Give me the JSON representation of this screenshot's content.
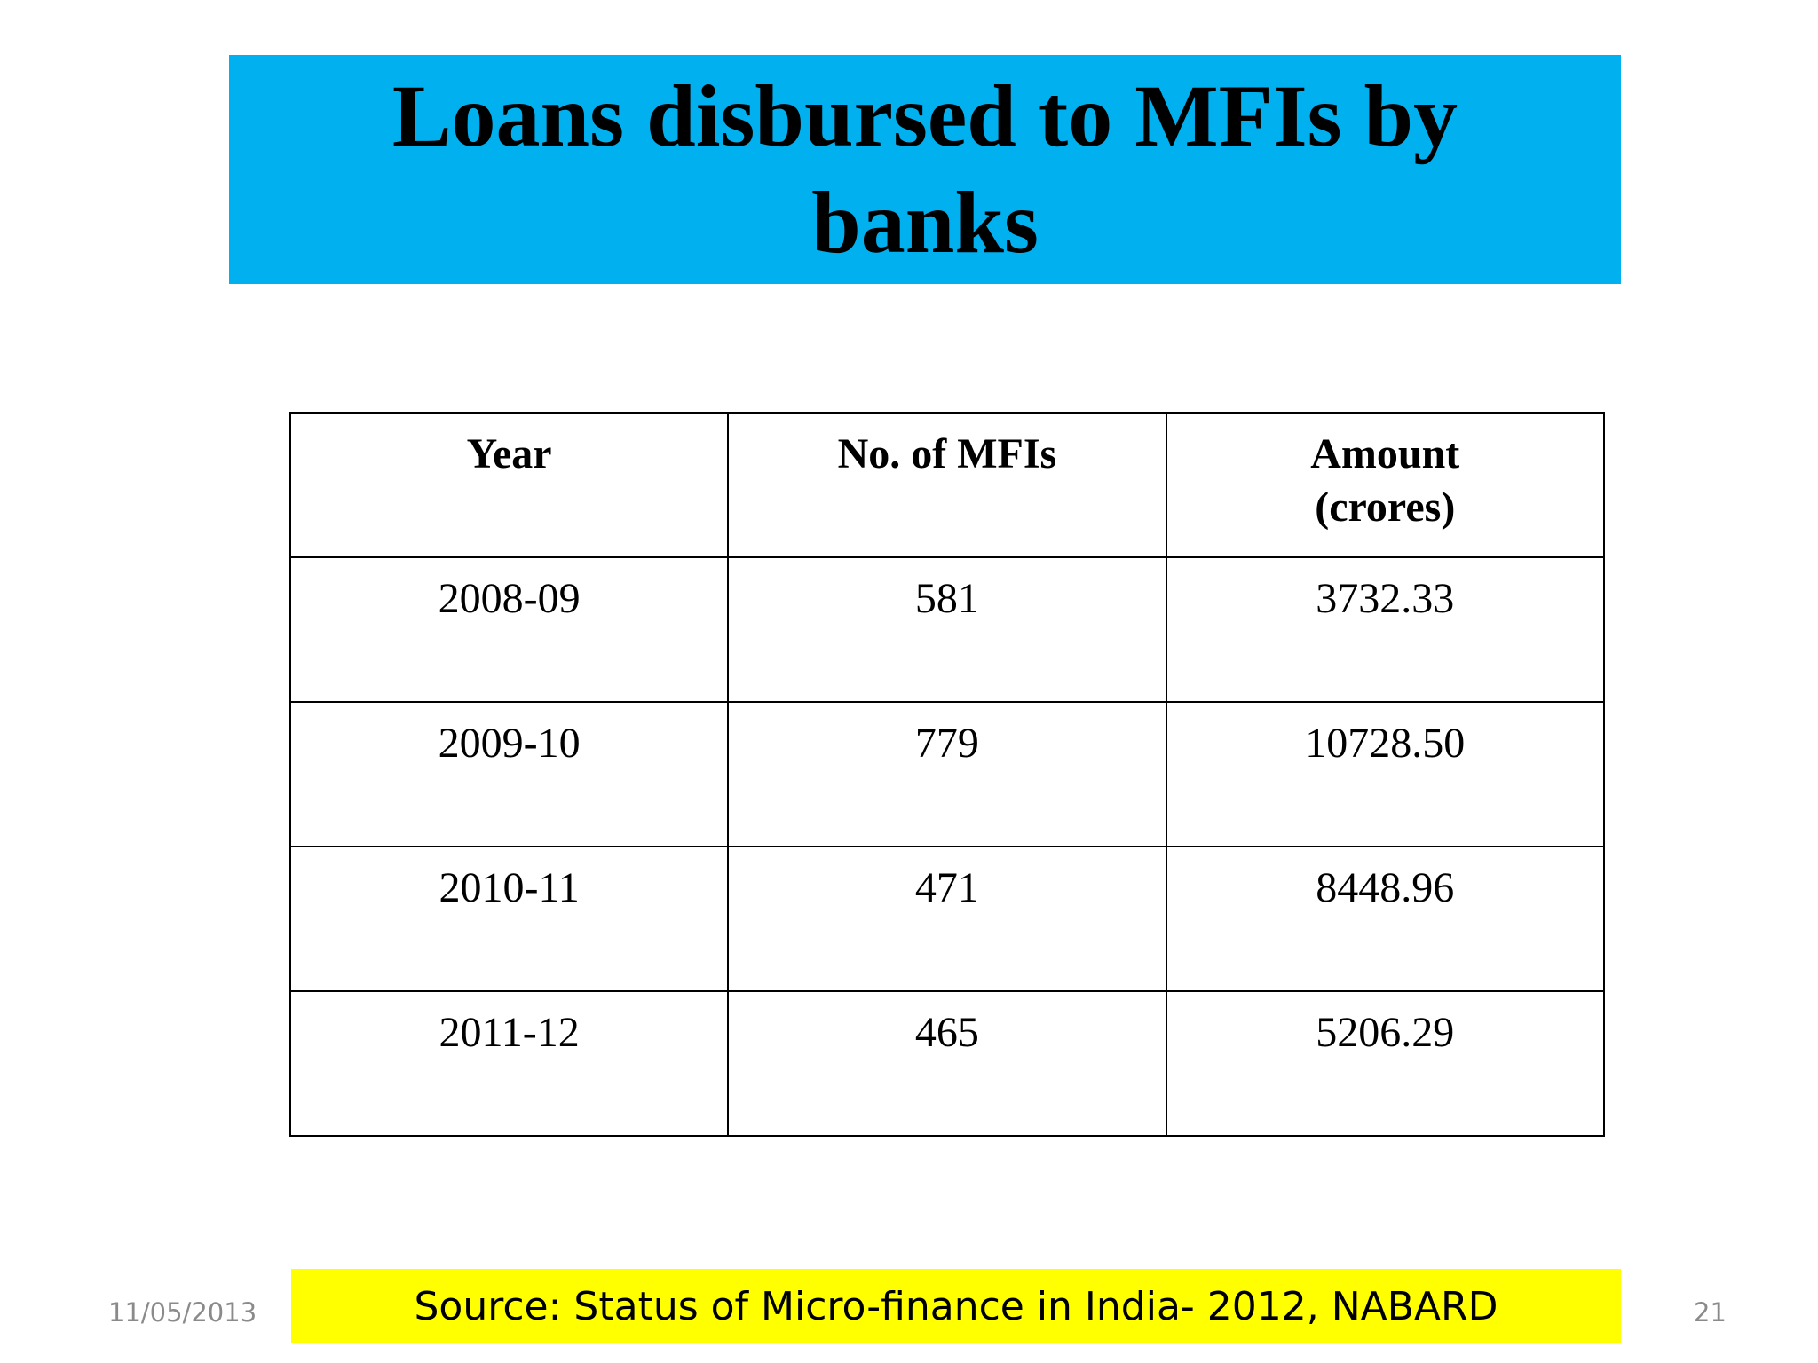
{
  "slide": {
    "title": "Loans disbursed to MFIs by banks",
    "title_background": "#00b0ef",
    "table": {
      "headers": [
        "Year",
        "No. of MFIs",
        "Amount (crores)"
      ],
      "rows": [
        [
          "2008-09",
          "581",
          "3732.33"
        ],
        [
          "2009-10",
          "779",
          "10728.50"
        ],
        [
          "2010-11",
          "471",
          "8448.96"
        ],
        [
          "2011-12",
          "465",
          "5206.29"
        ]
      ]
    },
    "source": "Source: Status of Micro-finance in India- 2012, NABARD",
    "source_background": "#ffff00",
    "footer": {
      "date": "11/05/2013",
      "page_number": "21"
    }
  }
}
